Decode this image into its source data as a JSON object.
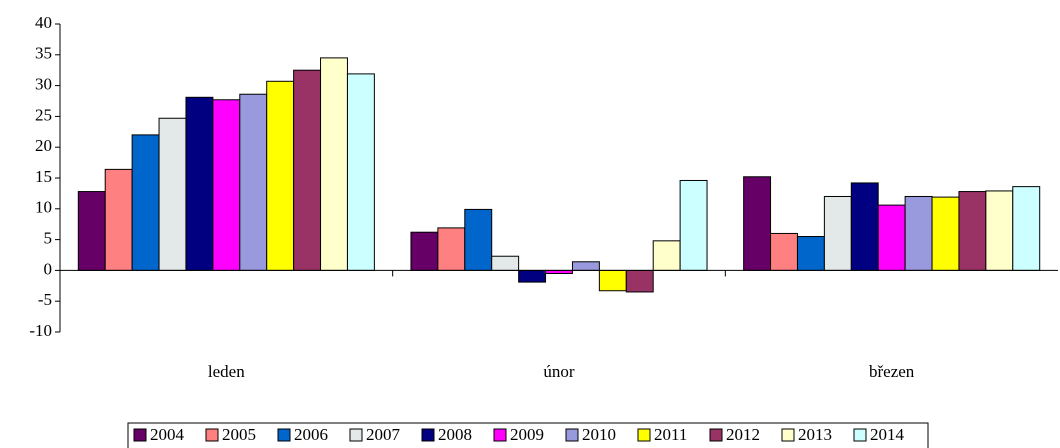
{
  "chart_data": {
    "type": "bar",
    "categories": [
      "leden",
      "únor",
      "březen"
    ],
    "series": [
      {
        "name": "2004",
        "color": "#660066",
        "values": [
          12.8,
          6.2,
          15.2
        ]
      },
      {
        "name": "2005",
        "color": "#ff8080",
        "values": [
          16.4,
          6.9,
          6
        ]
      },
      {
        "name": "2006",
        "color": "#0066cc",
        "values": [
          22,
          9.9,
          5.5
        ]
      },
      {
        "name": "2007",
        "color": "#e3e8e8",
        "values": [
          24.7,
          2.3,
          12
        ]
      },
      {
        "name": "2008",
        "color": "#000080",
        "values": [
          28.1,
          -1.9,
          14.2
        ]
      },
      {
        "name": "2009",
        "color": "#ff00ff",
        "values": [
          27.7,
          -0.5,
          10.6
        ]
      },
      {
        "name": "2010",
        "color": "#9999dd",
        "values": [
          28.6,
          1.4,
          12
        ]
      },
      {
        "name": "2011",
        "color": "#ffff00",
        "values": [
          30.7,
          -3.3,
          11.9
        ]
      },
      {
        "name": "2012",
        "color": "#993366",
        "values": [
          32.5,
          -3.5,
          12.8
        ]
      },
      {
        "name": "2013",
        "color": "#ffffcc",
        "values": [
          34.5,
          4.8,
          12.9
        ]
      },
      {
        "name": "2014",
        "color": "#ccffff",
        "values": [
          31.9,
          14.6,
          13.6
        ]
      }
    ],
    "ylim": [
      -10,
      40
    ],
    "yticks": [
      -10,
      -5,
      0,
      5,
      10,
      15,
      20,
      25,
      30,
      35,
      40
    ],
    "legend": "bottom"
  }
}
